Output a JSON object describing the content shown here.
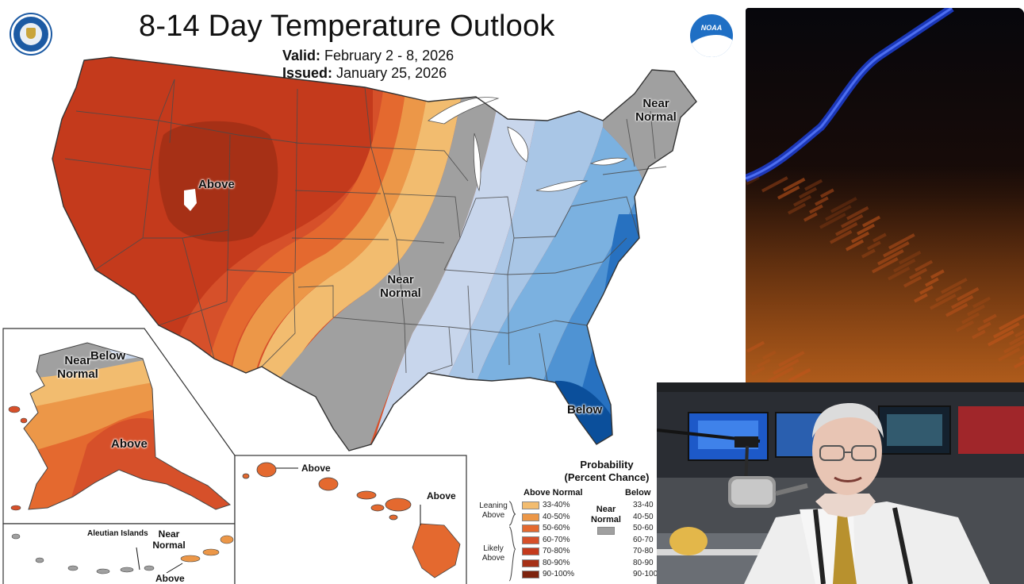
{
  "map": {
    "title": "8-14 Day Temperature Outlook",
    "valid_label": "Valid:",
    "valid_value": "February 2 - 8, 2026",
    "issued_label": "Issued:",
    "issued_value": "January 25, 2026"
  },
  "labels": {
    "conus_above": "Above",
    "conus_near_line1": "Near",
    "conus_near_line2": "Normal",
    "northeast_near_line1": "Near",
    "northeast_near_line2": "Normal",
    "florida_below": "Below",
    "alaska_below": "Below",
    "alaska_near_line1": "Near",
    "alaska_near_line2": "Normal",
    "alaska_above": "Above",
    "aleutian_title": "Aleutian Islands",
    "aleutian_near_line1": "Near",
    "aleutian_near_line2": "Normal",
    "aleutian_above": "Above",
    "hawaii_above_1": "Above",
    "hawaii_above_2": "Above"
  },
  "legend": {
    "title_line1": "Probability",
    "title_line2": "(Percent Chance)",
    "above_header": "Above Normal",
    "below_header": "Below",
    "leaning_line1": "Leaning",
    "leaning_line2": "Above",
    "likely_line1": "Likely",
    "likely_line2": "Above",
    "near_line1": "Near",
    "near_line2": "Normal",
    "above_ranges": [
      "33-40%",
      "40-50%",
      "50-60%",
      "60-70%",
      "70-80%",
      "80-90%",
      "90-100%"
    ],
    "below_ranges": [
      "33-40",
      "40-50",
      "50-60",
      "60-70",
      "70-80",
      "80-90",
      "90-100"
    ],
    "above_colors": [
      "#f2bc6f",
      "#ec9748",
      "#e4692f",
      "#d6502a",
      "#c43a1c",
      "#a63016",
      "#7d230e"
    ],
    "near_color": "#a0a0a0"
  },
  "colors": {
    "above_33": "#f2bc6f",
    "above_40": "#ec9748",
    "above_50": "#e4692f",
    "above_60": "#d6502a",
    "above_70": "#c43a1c",
    "above_80": "#a63016",
    "near": "#a0a0a0",
    "below_33": "#c8d6ec",
    "below_40": "#a9c6e6",
    "below_50": "#7bb1e0",
    "below_60": "#4f93d3",
    "below_70": "#2771c0",
    "below_80": "#0b4f9b"
  },
  "icons": {
    "left_logo": "commerce-seal-icon",
    "right_logo": "noaa-logo-icon",
    "noaa_text": "NOAA"
  }
}
